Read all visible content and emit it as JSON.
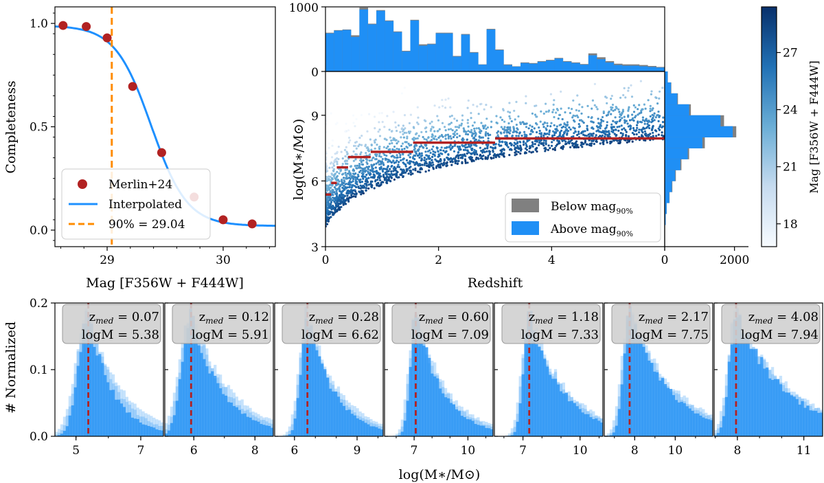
{
  "colors": {
    "above": "#1f8ff5",
    "below": "#808080",
    "curve": "#1e90ff",
    "merlin": "#b22222",
    "threshold": "#ff8c00",
    "median": "#b22222",
    "cmap_low": "#f7fbff",
    "cmap_high": "#08306b",
    "labelbox": "#d0d0d0"
  },
  "chart_data": [
    {
      "id": "completeness",
      "type": "line",
      "xlabel": "Mag [F356W + F444W]",
      "ylabel": "Completeness",
      "xlim": [
        28.55,
        30.45
      ],
      "ylim": [
        -0.08,
        1.08
      ],
      "xticks": [
        29,
        30
      ],
      "yticks": [
        0.0,
        0.5,
        1.0
      ],
      "ytick_labels": [
        "0.0",
        "0.5",
        "1.0"
      ],
      "merlin_points": {
        "x": [
          28.62,
          28.82,
          29.0,
          29.22,
          29.47,
          29.75,
          30.0,
          30.25
        ],
        "y": [
          0.99,
          0.985,
          0.93,
          0.695,
          0.375,
          0.16,
          0.05,
          0.03
        ]
      },
      "interp_params": {
        "center": 29.38,
        "width": 0.155,
        "floor": 0.02,
        "top": 0.99
      },
      "threshold": 29.04,
      "legend": [
        "Merlin+24",
        "Interpolated",
        "90% = 29.04"
      ]
    },
    {
      "id": "redshift-hist",
      "type": "bar",
      "ylim": [
        0,
        1000
      ],
      "yticks": [
        0,
        1000
      ],
      "bin_width": 0.25,
      "total": [
        600,
        640,
        650,
        560,
        990,
        740,
        950,
        790,
        620,
        320,
        800,
        420,
        430,
        600,
        600,
        240,
        580,
        300,
        110,
        660,
        340,
        110,
        80,
        140,
        130,
        160,
        180,
        210,
        160,
        140,
        115,
        280,
        220,
        160,
        120,
        110,
        110,
        100,
        85,
        70
      ],
      "above": [
        590,
        632,
        643,
        535,
        960,
        730,
        940,
        780,
        610,
        310,
        790,
        400,
        420,
        590,
        590,
        230,
        570,
        290,
        105,
        650,
        330,
        100,
        75,
        130,
        120,
        150,
        170,
        200,
        150,
        130,
        105,
        250,
        190,
        140,
        100,
        90,
        90,
        80,
        70,
        60
      ]
    },
    {
      "id": "mass-redshift",
      "type": "scatter",
      "xlabel": "Redshift",
      "ylabel": "log(M∗/M⊙)",
      "xlim": [
        0,
        6.0
      ],
      "ylim": [
        3,
        11
      ],
      "xticks": [
        0,
        2,
        4,
        6
      ],
      "xtick_labels": [
        "0",
        "2",
        "4",
        ""
      ],
      "yticks": [
        3,
        6,
        9
      ],
      "steps": [
        {
          "z0": 0.0,
          "z1": 0.1,
          "m": 5.38
        },
        {
          "z0": 0.1,
          "z1": 0.2,
          "m": 5.91
        },
        {
          "z0": 0.2,
          "z1": 0.4,
          "m": 6.62
        },
        {
          "z0": 0.4,
          "z1": 0.8,
          "m": 7.09
        },
        {
          "z0": 0.8,
          "z1": 1.55,
          "m": 7.33
        },
        {
          "z0": 1.55,
          "z1": 3.0,
          "m": 7.75
        },
        {
          "z0": 3.0,
          "z1": 6.0,
          "m": 7.94
        }
      ],
      "legend": [
        "Below mag",
        "90%",
        "Above mag",
        "90%"
      ]
    },
    {
      "id": "mass-hist",
      "type": "bar",
      "orientation": "horizontal",
      "xlim": [
        0,
        2400
      ],
      "xticks": [
        0,
        2000
      ],
      "mass_bins": [
        4.0,
        4.5,
        5.0,
        5.5,
        6.0,
        6.5,
        7.0,
        7.5,
        8.0,
        8.5,
        9.0,
        9.5,
        10.0,
        10.5
      ],
      "total": [
        30,
        60,
        140,
        220,
        320,
        480,
        700,
        1150,
        2050,
        1700,
        750,
        380,
        190,
        90
      ],
      "above": [
        28,
        55,
        130,
        205,
        300,
        450,
        660,
        1080,
        1950,
        1600,
        700,
        360,
        180,
        85
      ]
    },
    {
      "id": "colorbar",
      "type": "heatmap",
      "label": "Mag [F356W + F444W]",
      "range": [
        16.8,
        29.4
      ],
      "ticks": [
        18,
        21,
        24,
        27
      ]
    },
    {
      "id": "mass-distributions",
      "type": "bar",
      "xlabel": "log(M∗/M⊙)",
      "ylabel": "# Normalized",
      "ylim": [
        0,
        0.2
      ],
      "yticks": [
        0.0,
        0.1,
        0.2
      ],
      "ytick_labels": [
        "0.0",
        "0.1",
        "0.2"
      ],
      "panels": [
        {
          "zmed": "0.07",
          "logM": "5.38",
          "median": 5.38,
          "xlim": [
            4.35,
            7.7
          ],
          "xticks": [
            5,
            7
          ]
        },
        {
          "zmed": "0.12",
          "logM": "5.91",
          "median": 5.91,
          "xlim": [
            5.05,
            8.6
          ],
          "xticks": [
            6,
            8
          ]
        },
        {
          "zmed": "0.28",
          "logM": "6.62",
          "median": 6.62,
          "xlim": [
            5.05,
            10.25
          ],
          "xticks": [
            6,
            9
          ]
        },
        {
          "zmed": "0.60",
          "logM": "7.09",
          "median": 7.09,
          "xlim": [
            5.35,
            11.4
          ],
          "xticks": [
            7,
            10
          ]
        },
        {
          "zmed": "1.18",
          "logM": "7.33",
          "median": 7.33,
          "xlim": [
            5.5,
            11.2
          ],
          "xticks": [
            7,
            10
          ]
        },
        {
          "zmed": "2.17",
          "logM": "7.75",
          "median": 7.75,
          "xlim": [
            6.5,
            11.85
          ],
          "xticks": [
            8,
            10
          ]
        },
        {
          "zmed": "4.08",
          "logM": "7.94",
          "median": 7.94,
          "xlim": [
            6.95,
            11.85
          ],
          "xticks": [
            8,
            11
          ]
        }
      ]
    }
  ],
  "labels": {
    "z_prefix": "z",
    "z_sub": "med",
    "eq": " = ",
    "logm_prefix": "logM = "
  }
}
